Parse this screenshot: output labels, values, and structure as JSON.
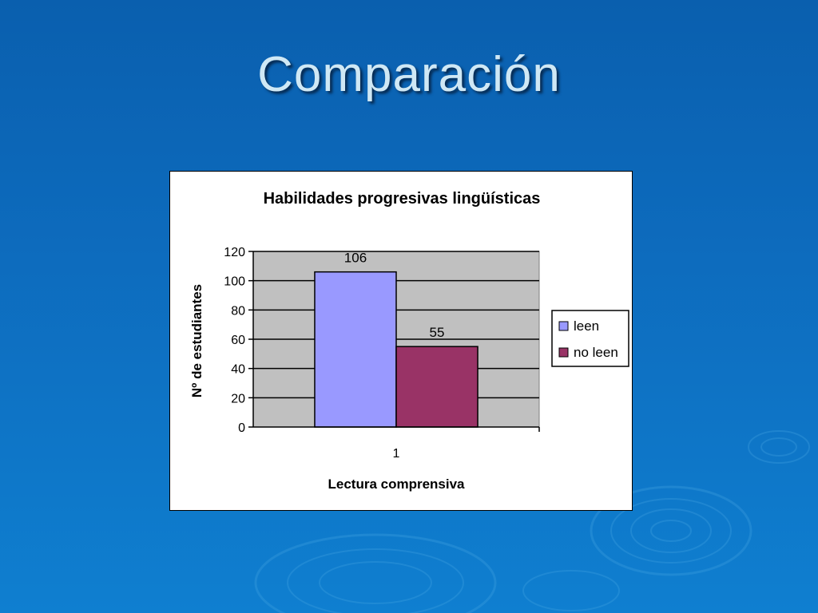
{
  "slide": {
    "title": "Comparación"
  },
  "colors": {
    "series_leen": "#9999ff",
    "series_no_leen": "#993366",
    "plot_bg": "#c0c0c0"
  },
  "chart_data": {
    "type": "bar",
    "title": "Habilidades progresivas lingüísticas",
    "xlabel": "Lectura comprensiva",
    "ylabel": "Nº de estudiantes",
    "categories": [
      "1"
    ],
    "ylim": [
      0,
      120
    ],
    "yticks": [
      0,
      20,
      40,
      60,
      80,
      100,
      120
    ],
    "grid": true,
    "legend_position": "right",
    "series": [
      {
        "name": "leen",
        "values": [
          106
        ]
      },
      {
        "name": "no leen",
        "values": [
          55
        ]
      }
    ]
  }
}
